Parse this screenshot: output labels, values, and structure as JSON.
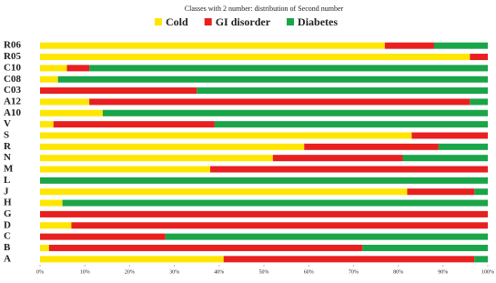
{
  "chart_data": {
    "type": "stacked-barh",
    "title": "Classes with 2 number: distribution of Second number",
    "categories": [
      "R06",
      "R05",
      "C10",
      "C08",
      "C03",
      "A12",
      "A10",
      "V",
      "S",
      "R",
      "N",
      "M",
      "L",
      "J",
      "H",
      "G",
      "D",
      "C",
      "B",
      "A"
    ],
    "series": [
      {
        "name": "Cold",
        "color": "#ffe600",
        "values": [
          77,
          96,
          6,
          4,
          0,
          11,
          14,
          3,
          83,
          59,
          52,
          38,
          0,
          82,
          5,
          0,
          7,
          0,
          2,
          41
        ]
      },
      {
        "name": "GI disorder",
        "color": "#e8201f",
        "values": [
          11,
          4,
          5,
          0,
          35,
          85,
          0,
          36,
          17,
          30,
          29,
          62,
          0,
          15,
          0,
          100,
          93,
          28,
          70,
          56
        ]
      },
      {
        "name": "Diabetes",
        "color": "#1aa548",
        "values": [
          12,
          0,
          89,
          96,
          65,
          4,
          86,
          61,
          0,
          11,
          19,
          0,
          100,
          3,
          95,
          0,
          0,
          72,
          28,
          3
        ]
      }
    ],
    "xlim": [
      0,
      100
    ],
    "xticks": [
      {
        "value": 0,
        "label": "0%"
      },
      {
        "value": 10,
        "label": "10%"
      },
      {
        "value": 20,
        "label": "20%"
      },
      {
        "value": 30,
        "label": "30%"
      },
      {
        "value": 40,
        "label": "40%"
      },
      {
        "value": 50,
        "label": "50%"
      },
      {
        "value": 60,
        "label": "60%"
      },
      {
        "value": 70,
        "label": "70%"
      },
      {
        "value": 80,
        "label": "80%"
      },
      {
        "value": 90,
        "label": "90%"
      },
      {
        "value": 100,
        "label": "100%"
      }
    ],
    "grid": false
  }
}
